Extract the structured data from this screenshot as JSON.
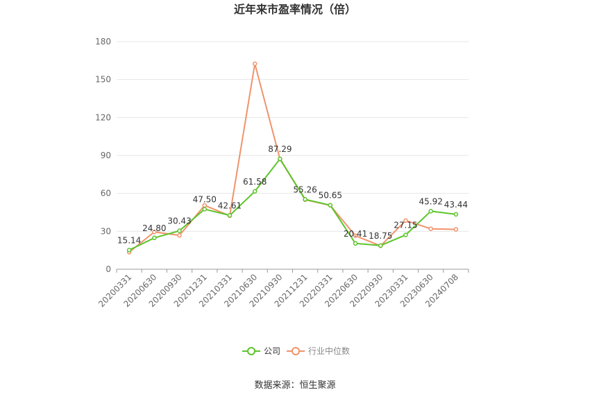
{
  "chart_data": {
    "type": "line",
    "title": "近年来市盈率情况（倍）",
    "xlabel": "",
    "ylabel": "",
    "ylim": [
      0,
      180
    ],
    "yticks": [
      0,
      30,
      60,
      90,
      120,
      150,
      180
    ],
    "grid": true,
    "legend_position": "bottom-center",
    "categories": [
      "20200331",
      "20200630",
      "20200930",
      "20201231",
      "20210331",
      "20210630",
      "20210930",
      "20211231",
      "20220331",
      "20220630",
      "20220930",
      "20230331",
      "20230630",
      "20240708"
    ],
    "series": [
      {
        "name": "公司",
        "color": "#5cc42b",
        "values": [
          15.14,
          24.8,
          30.43,
          47.5,
          42.61,
          61.58,
          87.29,
          55.26,
          50.65,
          20.41,
          18.75,
          27.15,
          45.92,
          43.44
        ],
        "labels": [
          "15.14",
          "24.80",
          "30.43",
          "47.50",
          "42.61",
          "61.58",
          "87.29",
          "55.26",
          "50.65",
          "20.41",
          "18.75",
          "27.15",
          "45.92",
          "43.44"
        ]
      },
      {
        "name": "行业中位数",
        "color": "#f0936b",
        "values": [
          13.5,
          29.5,
          26.8,
          50.5,
          42.3,
          162.5,
          87.0,
          55.0,
          50.5,
          26.5,
          18.5,
          38.5,
          32.0,
          31.5
        ]
      }
    ]
  },
  "source": "数据来源：恒生聚源"
}
